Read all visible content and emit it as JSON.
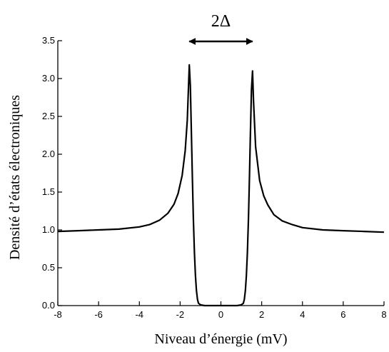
{
  "chart_data": {
    "type": "line",
    "title": "",
    "xlabel": "Niveau d’énergie (mV)",
    "ylabel": "Densité d’états électroniques",
    "xlim": [
      -8,
      8
    ],
    "ylim": [
      0,
      3.5
    ],
    "xticks": [
      "-8",
      "-6",
      "-4",
      "-2",
      "0",
      "2",
      "4",
      "6",
      "8"
    ],
    "yticks": [
      "0.0",
      "0.5",
      "1.0",
      "1.5",
      "2.0",
      "2.5",
      "3.0",
      "3.5"
    ],
    "grid": false,
    "annotation": {
      "text": "2Δ",
      "from_x": -1.55,
      "to_x": 1.55
    },
    "series": [
      {
        "x": [
          -8,
          -7,
          -6,
          -5,
          -4,
          -3.5,
          -3,
          -2.6,
          -2.3,
          -2.1,
          -1.9,
          -1.75,
          -1.65,
          -1.55,
          -1.5,
          -1.45,
          -1.4,
          -1.35,
          -1.3,
          -1.25,
          -1.2,
          -1.15,
          -1.1,
          -1.0,
          -0.8,
          -0.5,
          0,
          0.5,
          0.8,
          1.0,
          1.1,
          1.15,
          1.2,
          1.25,
          1.3,
          1.35,
          1.4,
          1.45,
          1.5,
          1.55,
          1.6,
          1.7,
          1.9,
          2.1,
          2.3,
          2.6,
          3,
          3.5,
          4,
          5,
          6,
          7,
          8
        ],
        "y": [
          0.98,
          0.99,
          1.0,
          1.01,
          1.04,
          1.07,
          1.13,
          1.22,
          1.34,
          1.48,
          1.72,
          2.05,
          2.45,
          3.18,
          2.9,
          2.3,
          1.7,
          1.15,
          0.7,
          0.4,
          0.2,
          0.08,
          0.03,
          0.01,
          0.0,
          0.0,
          0.0,
          0.0,
          0.0,
          0.01,
          0.03,
          0.08,
          0.2,
          0.4,
          0.7,
          1.15,
          1.7,
          2.3,
          2.85,
          3.1,
          2.7,
          2.1,
          1.65,
          1.45,
          1.33,
          1.2,
          1.12,
          1.07,
          1.03,
          1.0,
          0.99,
          0.98,
          0.97
        ]
      }
    ]
  }
}
